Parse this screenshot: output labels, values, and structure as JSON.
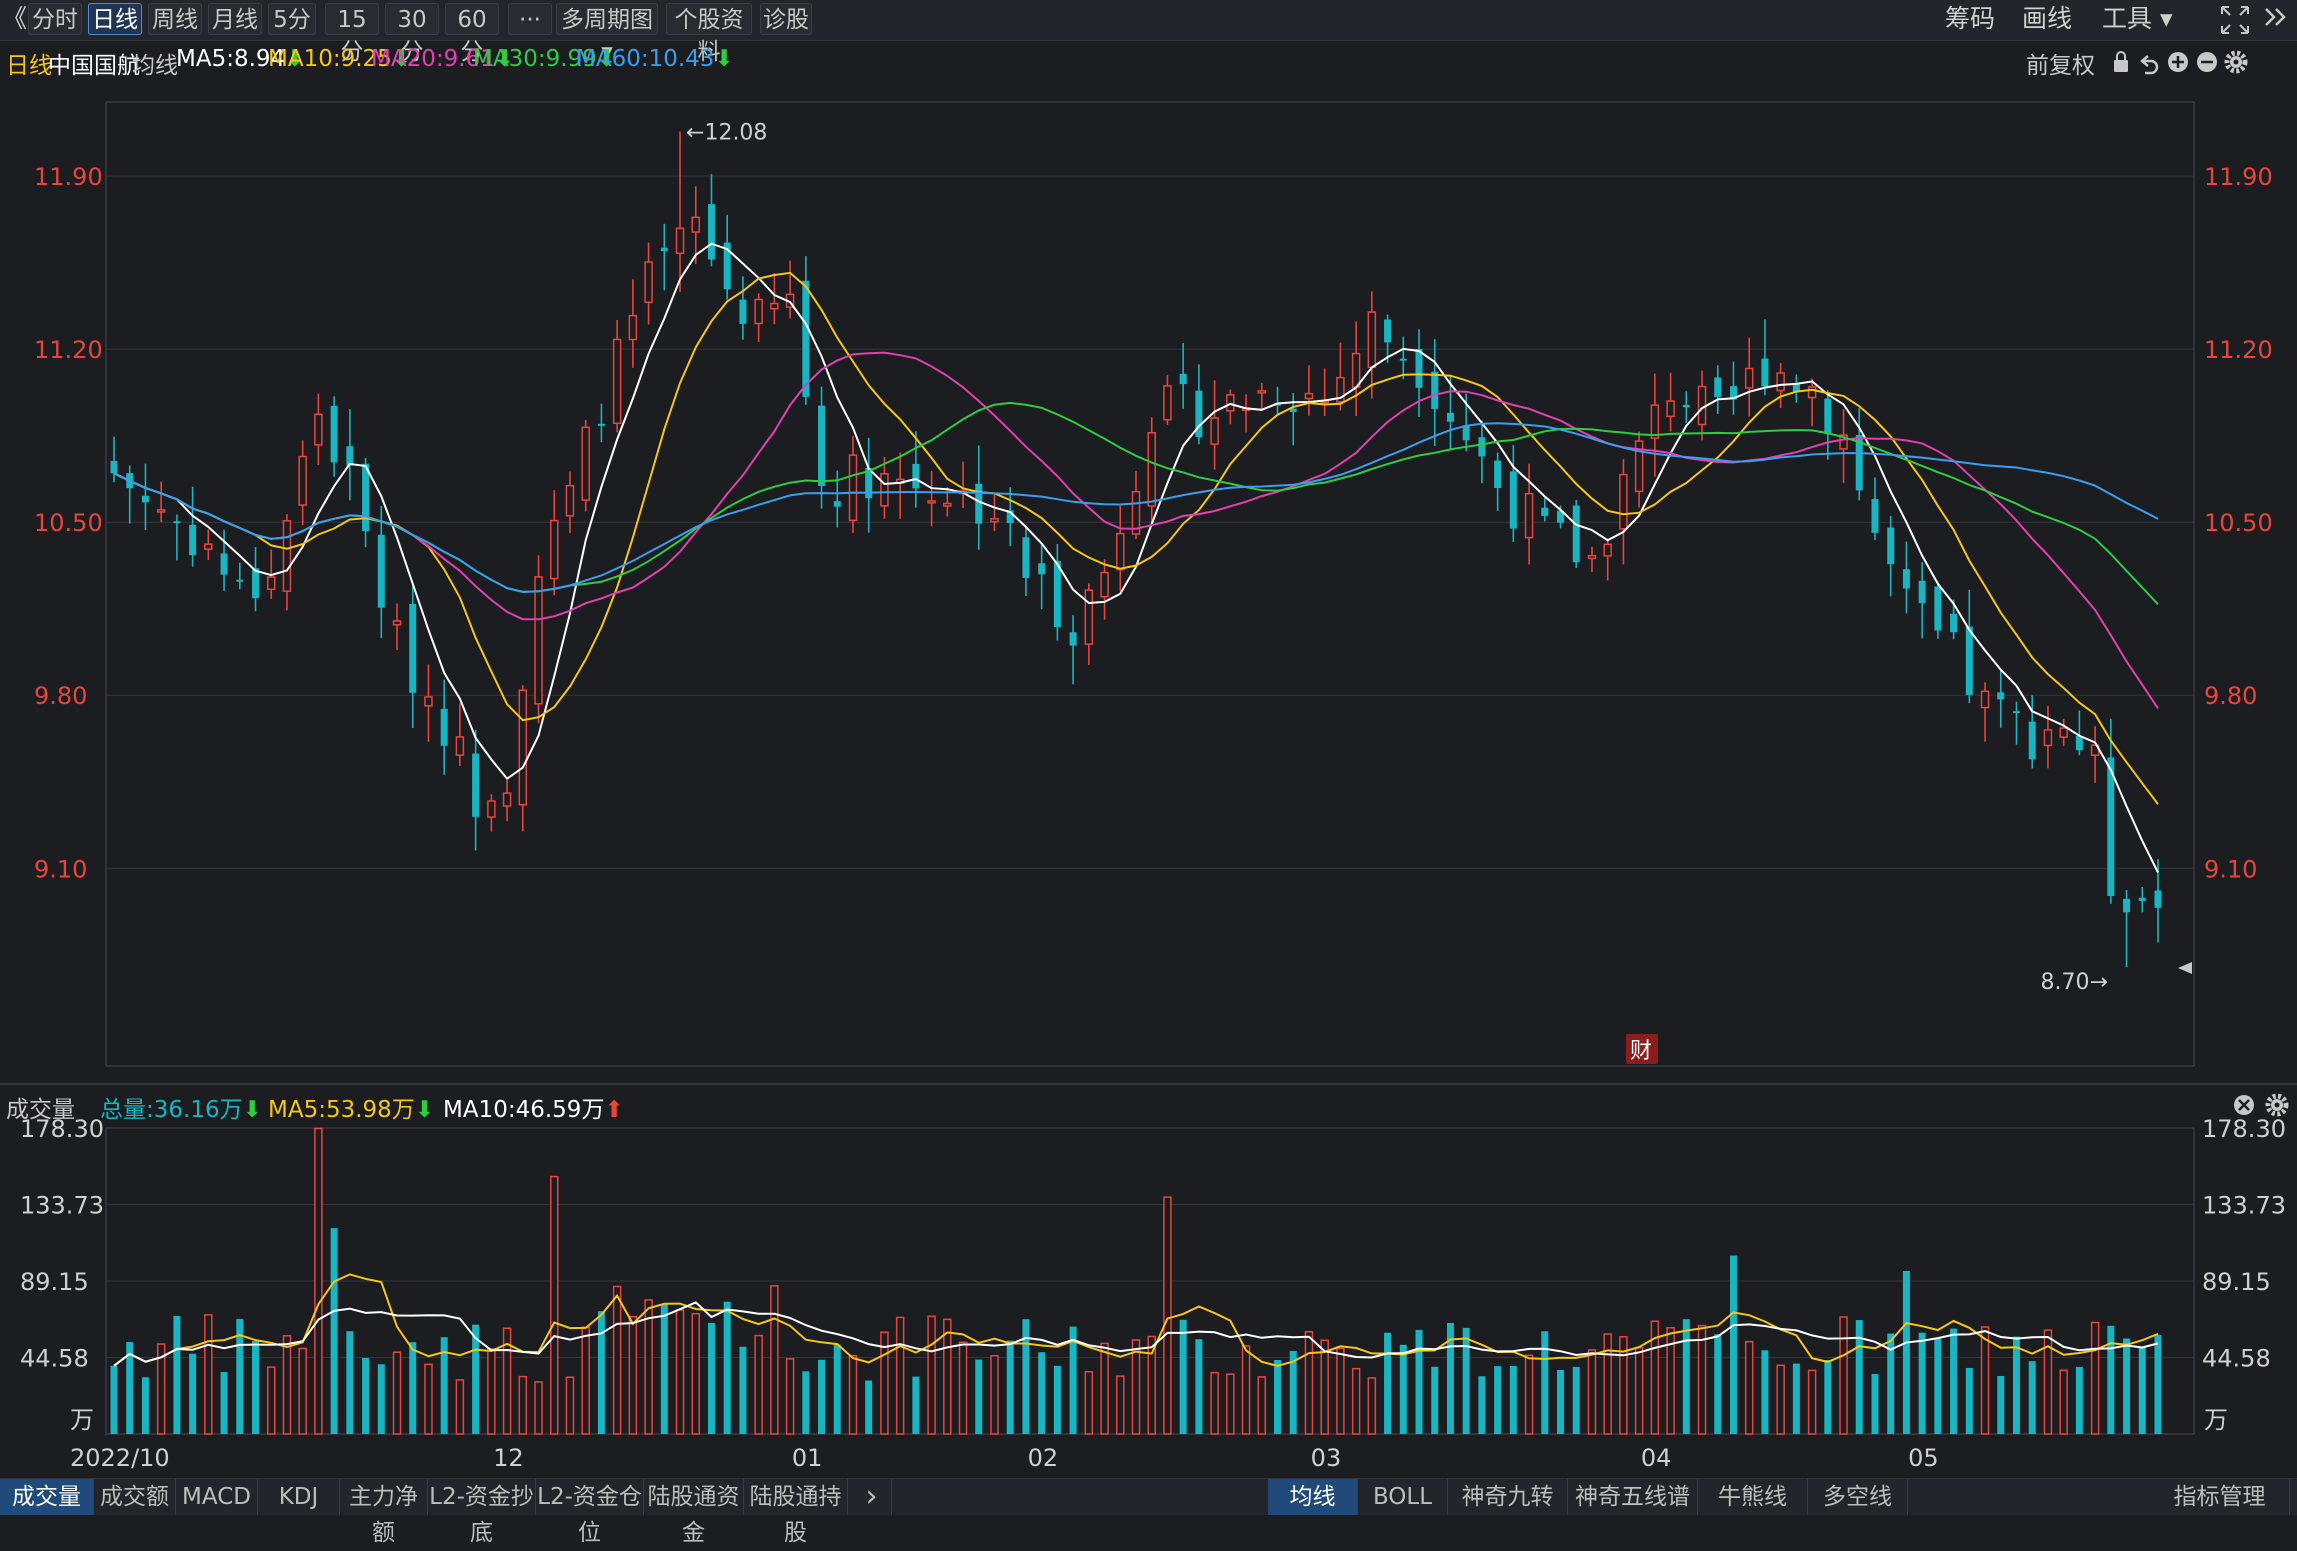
{
  "toolbar": {
    "back": "《",
    "periods": [
      "分时",
      "日线",
      "周线",
      "月线",
      "5分",
      "15分",
      "30分",
      "60分",
      "···"
    ],
    "multi": "多周期图",
    "profile": "个股资料",
    "diagnose": "诊股",
    "right": [
      "筹码",
      "画线",
      "工具"
    ],
    "colors": {
      "active": "#4a8cd6"
    }
  },
  "ma_bar": {
    "period": "日线",
    "stock": "中国国航",
    "label": "均线",
    "ma5": "MA5:8.94",
    "ma10": "MA10:9.25",
    "ma20": "MA20:9.61",
    "ma30": "MA30:9.99",
    "ma60": "MA60:10.43",
    "adjust": "前复权",
    "colors": {
      "ma5": "#ffffff",
      "ma10": "#f5c518",
      "ma20": "#e040b0",
      "ma30": "#2ecc40",
      "ma60": "#3a9ef0"
    }
  },
  "vol_bar": {
    "title": "成交量",
    "total": "总量:36.16万",
    "ma5": "MA5:53.98万",
    "ma10": "MA10:46.59万"
  },
  "tabs_left": [
    "成交量",
    "成交额",
    "MACD",
    "KDJ",
    "主力净额",
    "L2-资金抄底",
    "L2-资金仓位",
    "陆股通资金",
    "陆股通持股"
  ],
  "tabs_right": [
    "均线",
    "BOLL",
    "神奇九转",
    "神奇五线谱",
    "牛熊线",
    "多空线"
  ],
  "tabs_end": "指标管理",
  "chart_data": {
    "type": "candlestick",
    "price_ticks": [
      "11.90",
      "11.20",
      "10.50",
      "9.80",
      "9.10"
    ],
    "price_range": [
      8.3,
      12.2
    ],
    "high_label": "12.08",
    "low_label": "8.70",
    "fin_marker": "财",
    "volume_ticks": [
      "178.30",
      "133.73",
      "89.15",
      "44.58"
    ],
    "volume_unit": "万",
    "volume_range": [
      0,
      178.3
    ],
    "x_labels": [
      {
        "i": 0,
        "label": "2022/10"
      },
      {
        "i": 25,
        "label": "12"
      },
      {
        "i": 44,
        "label": "01"
      },
      {
        "i": 59,
        "label": "02"
      },
      {
        "i": 77,
        "label": "03"
      },
      {
        "i": 98,
        "label": "04"
      },
      {
        "i": 115,
        "label": "05"
      }
    ],
    "anchors": [
      [
        0,
        10.7
      ],
      [
        6,
        10.4
      ],
      [
        8,
        10.2
      ],
      [
        10,
        10.3
      ],
      [
        13,
        10.95
      ],
      [
        15,
        10.65
      ],
      [
        18,
        10.0
      ],
      [
        21,
        9.7
      ],
      [
        23,
        9.4
      ],
      [
        25,
        9.5
      ],
      [
        27,
        10.3
      ],
      [
        29,
        10.6
      ],
      [
        31,
        11.0
      ],
      [
        34,
        11.45
      ],
      [
        37,
        11.7
      ],
      [
        39,
        11.45
      ],
      [
        41,
        11.3
      ],
      [
        43,
        11.4
      ],
      [
        45,
        10.65
      ],
      [
        48,
        10.7
      ],
      [
        52,
        10.65
      ],
      [
        56,
        10.55
      ],
      [
        58,
        10.3
      ],
      [
        61,
        10.1
      ],
      [
        63,
        10.3
      ],
      [
        66,
        10.95
      ],
      [
        70,
        10.95
      ],
      [
        74,
        11.05
      ],
      [
        77,
        11.0
      ],
      [
        80,
        11.3
      ],
      [
        83,
        11.15
      ],
      [
        86,
        10.85
      ],
      [
        88,
        10.65
      ],
      [
        91,
        10.45
      ],
      [
        94,
        10.35
      ],
      [
        96,
        10.65
      ],
      [
        99,
        11.05
      ],
      [
        102,
        10.9
      ],
      [
        105,
        11.15
      ],
      [
        108,
        11.05
      ],
      [
        110,
        10.85
      ],
      [
        112,
        10.45
      ],
      [
        114,
        10.15
      ],
      [
        117,
        9.95
      ],
      [
        119,
        9.75
      ],
      [
        122,
        9.65
      ],
      [
        124,
        9.7
      ],
      [
        126,
        9.5
      ],
      [
        127,
        9.05
      ],
      [
        130,
        8.95
      ]
    ],
    "series": [
      {
        "name": "MA5",
        "window": 5
      },
      {
        "name": "MA10",
        "window": 10
      },
      {
        "name": "MA20",
        "window": 20
      },
      {
        "name": "MA30",
        "window": 30
      },
      {
        "name": "MA60",
        "window": 60
      }
    ],
    "colors": {
      "up": "#e9453c",
      "down": "#17b6c2",
      "grid": "#34363d",
      "axis_text": "#e9453c"
    }
  }
}
